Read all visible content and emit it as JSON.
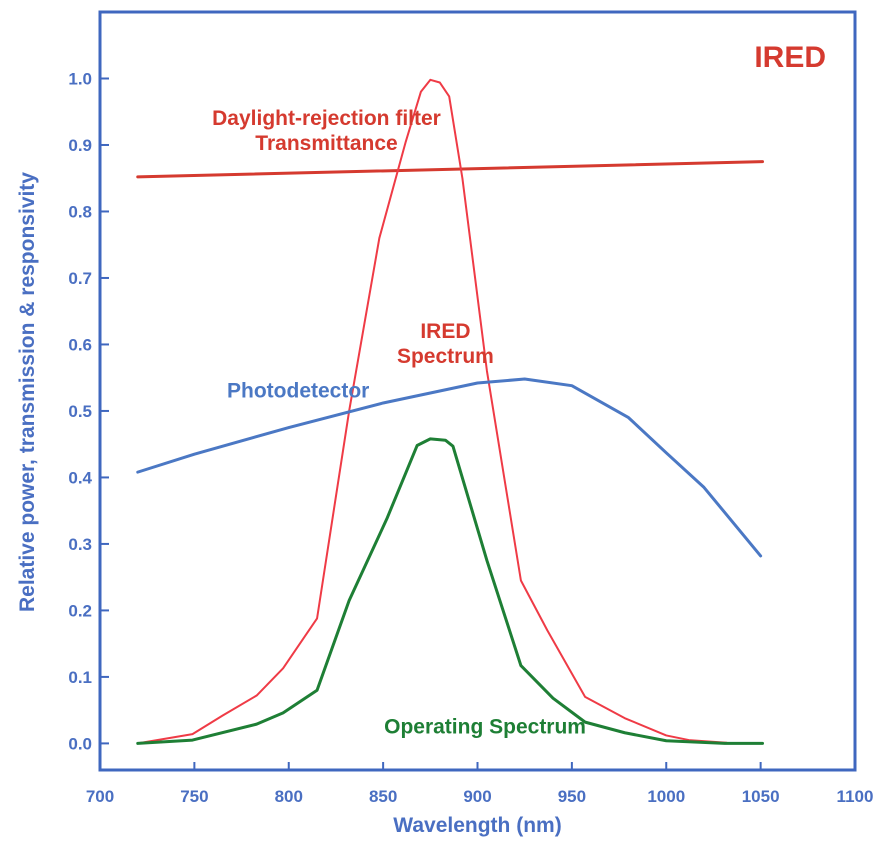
{
  "chart_data": {
    "type": "line",
    "title": "IRED",
    "xlabel": "Wavelength (nm)",
    "ylabel": "Relative power, transmission & responsivity",
    "xlim": [
      700,
      1100
    ],
    "ylim": [
      -0.04,
      1.1
    ],
    "x_ticks": [
      700,
      750,
      800,
      850,
      900,
      950,
      1000,
      1050,
      1100
    ],
    "x_tick_labels": [
      "700",
      "750",
      "800",
      "850",
      "900",
      "950",
      "1000",
      "1050",
      "1100"
    ],
    "y_ticks": [
      0.0,
      0.1,
      0.2,
      0.3,
      0.4,
      0.5,
      0.6,
      0.7,
      0.8,
      0.9,
      1.0
    ],
    "y_tick_labels": [
      "0.0",
      "0.1",
      "0.2",
      "0.3",
      "0.4",
      "0.5",
      "0.6",
      "0.7",
      "0.8",
      "0.9",
      "1.0"
    ],
    "grid": false,
    "series": [
      {
        "name": "Daylight-rejection filter Transmittance",
        "color": "#d53a2f",
        "stroke_width": 3,
        "points": [
          [
            720,
            0.852
          ],
          [
            1051,
            0.875
          ]
        ]
      },
      {
        "name": "IRED Spectrum",
        "color": "#ef3b46",
        "stroke_width": 2,
        "points": [
          [
            720,
            0.0
          ],
          [
            749,
            0.014
          ],
          [
            765,
            0.042
          ],
          [
            783,
            0.072
          ],
          [
            797,
            0.113
          ],
          [
            815,
            0.188
          ],
          [
            832,
            0.5
          ],
          [
            848,
            0.76
          ],
          [
            862,
            0.905
          ],
          [
            870,
            0.98
          ],
          [
            875,
            0.998
          ],
          [
            880,
            0.994
          ],
          [
            885,
            0.973
          ],
          [
            892,
            0.85
          ],
          [
            905,
            0.56
          ],
          [
            923,
            0.245
          ],
          [
            937,
            0.17
          ],
          [
            957,
            0.07
          ],
          [
            978,
            0.038
          ],
          [
            1000,
            0.012
          ],
          [
            1012,
            0.005
          ],
          [
            1032,
            0.001
          ]
        ]
      },
      {
        "name": "Photodetector",
        "color": "#4b78c4",
        "stroke_width": 3,
        "points": [
          [
            720,
            0.408
          ],
          [
            750,
            0.435
          ],
          [
            800,
            0.475
          ],
          [
            850,
            0.512
          ],
          [
            900,
            0.542
          ],
          [
            925,
            0.548
          ],
          [
            950,
            0.538
          ],
          [
            980,
            0.49
          ],
          [
            1000,
            0.437
          ],
          [
            1020,
            0.385
          ],
          [
            1050,
            0.282
          ]
        ]
      },
      {
        "name": "Operating Spectrum",
        "color": "#1e7f35",
        "stroke_width": 3,
        "points": [
          [
            720,
            0.0
          ],
          [
            749,
            0.005
          ],
          [
            783,
            0.029
          ],
          [
            797,
            0.046
          ],
          [
            815,
            0.08
          ],
          [
            832,
            0.215
          ],
          [
            852,
            0.338
          ],
          [
            868,
            0.448
          ],
          [
            875,
            0.458
          ],
          [
            883,
            0.456
          ],
          [
            887,
            0.447
          ],
          [
            905,
            0.275
          ],
          [
            923,
            0.117
          ],
          [
            940,
            0.068
          ],
          [
            957,
            0.032
          ],
          [
            978,
            0.016
          ],
          [
            1000,
            0.004
          ],
          [
            1031,
            0.0
          ],
          [
            1051,
            0.0
          ]
        ]
      }
    ],
    "annotations": [
      {
        "lines": [
          "Daylight-rejection filter",
          "Transmittance"
        ],
        "x": 820,
        "y": 0.93,
        "color": "#d53a2f"
      },
      {
        "lines": [
          "IRED",
          "Spectrum"
        ],
        "x": 883,
        "y": 0.61,
        "color": "#d53a2f"
      },
      {
        "lines": [
          "Photodetector"
        ],
        "x": 805,
        "y": 0.52,
        "color": "#4b78c4"
      },
      {
        "lines": [
          "Operating Spectrum"
        ],
        "x": 904,
        "y": 0.015,
        "color": "#1e7f35"
      }
    ]
  }
}
